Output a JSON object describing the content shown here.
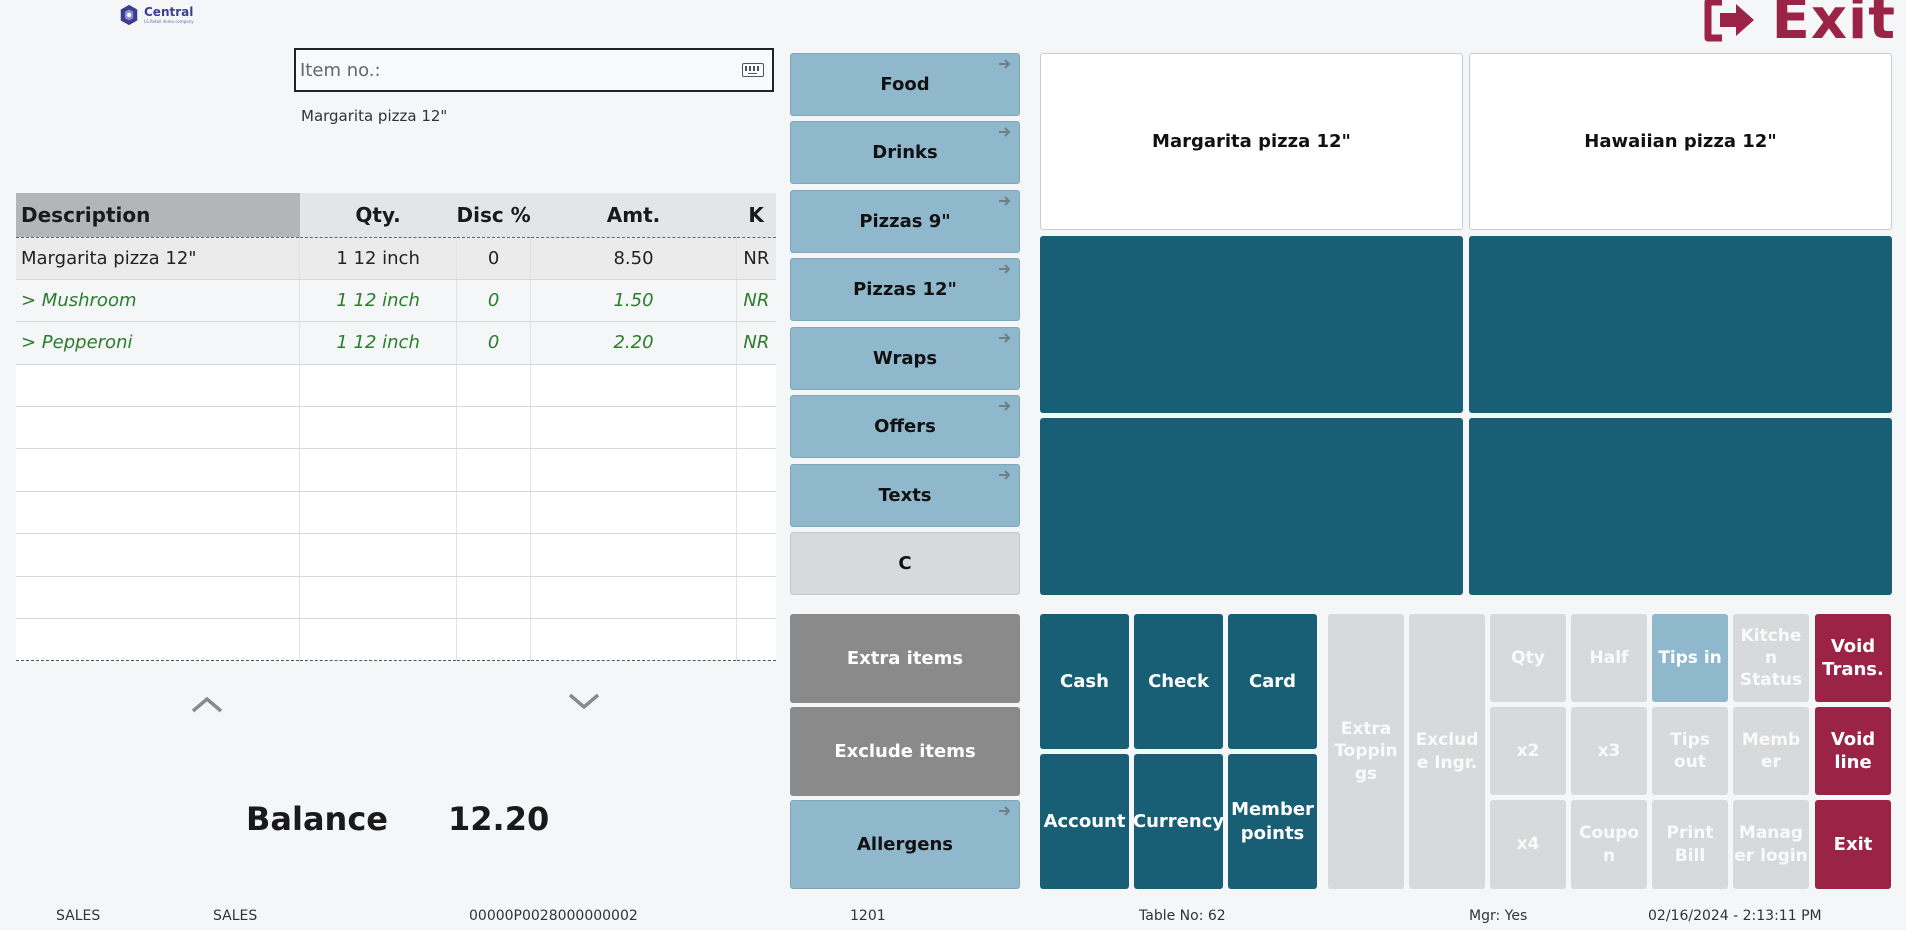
{
  "logo": {
    "title": "Central",
    "subtitle": "LS Retail demo company"
  },
  "top_exit": {
    "label": "Exit"
  },
  "item_input": {
    "placeholder": "Item no.:",
    "value": ""
  },
  "last_item": "Margarita pizza 12\"",
  "table": {
    "headers": {
      "description": "Description",
      "qty": "Qty.",
      "disc": "Disc %",
      "amt": "Amt.",
      "k": "K"
    },
    "rows": [
      {
        "description": "Margarita pizza 12\"",
        "qty": "1 12 inch",
        "disc": "0",
        "amt": "8.50",
        "k": "NR"
      },
      {
        "description": "> Mushroom",
        "qty": "1 12 inch",
        "disc": "0",
        "amt": "1.50",
        "k": "NR"
      },
      {
        "description": "> Pepperoni",
        "qty": "1 12 inch",
        "disc": "0",
        "amt": "2.20",
        "k": "NR"
      }
    ]
  },
  "balance": {
    "label": "Balance",
    "value": "12.20"
  },
  "categories": [
    "Food",
    "Drinks",
    "Pizzas 9\"",
    "Pizzas 12\"",
    "Wraps",
    "Offers",
    "Texts",
    "C"
  ],
  "extra": {
    "extra_items": "Extra items",
    "exclude_items": "Exclude items",
    "allergens": "Allergens"
  },
  "products": [
    "Margarita pizza 12\"",
    "Hawaiian pizza 12\""
  ],
  "payment": {
    "cash": "Cash",
    "check": "Check",
    "card": "Card",
    "account": "Account",
    "currency": "Currency",
    "member_points": "Member points"
  },
  "functions": {
    "extra_toppings": "Extra Toppin gs",
    "exclude_ingr": "Exclud e Ingr.",
    "qty": "Qty",
    "half": "Half",
    "tips_in": "Tips in",
    "kitchen_status": "Kitche n Status",
    "x2": "x2",
    "x3": "x3",
    "tips_out": "Tips out",
    "member": "Memb er",
    "x4": "x4",
    "coupon": "Coupo n",
    "print_bill": "Print Bill",
    "manager_login": "Manag er login",
    "void_trans": "Void Trans.",
    "void_line": "Void line",
    "exit": "Exit"
  },
  "status_bar": {
    "mode1": "SALES",
    "mode2": "SALES",
    "transaction": "00000P0028000000002",
    "terminal": "1201",
    "table": "Table No: 62",
    "manager": "Mgr: Yes",
    "datetime": "02/16/2024 - 2:13:11 PM"
  },
  "colors": {
    "teal": "#185f76",
    "light_blue": "#90b8cc",
    "crimson": "#9b2446",
    "gray_button": "#8a8a8a",
    "disabled": "#d7d9da",
    "modifier_green": "#2a7d2a"
  },
  "icons": {
    "exit": "exit-door-arrow-icon",
    "keyboard": "keyboard-icon",
    "scroll_up": "chevron-up-icon",
    "scroll_down": "chevron-down-icon",
    "submenu": "arrow-right-icon"
  }
}
